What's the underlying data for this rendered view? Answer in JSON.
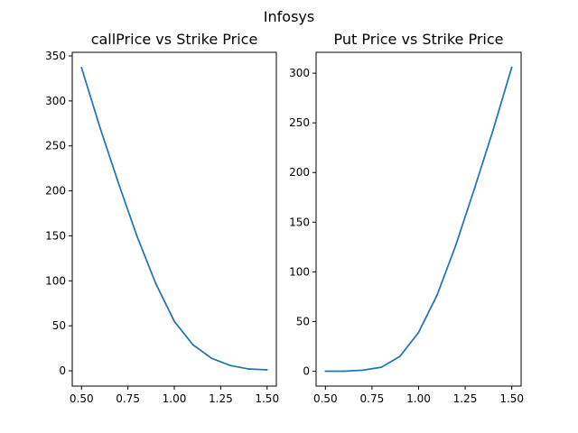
{
  "figure": {
    "suptitle": "Infosys"
  },
  "chart_data": [
    {
      "type": "line",
      "title": "callPrice vs Strike Price",
      "xlabel": "",
      "ylabel": "",
      "xlim": [
        0.45,
        1.55
      ],
      "ylim": [
        -17,
        354
      ],
      "xticks": [
        0.5,
        0.75,
        1.0,
        1.25,
        1.5
      ],
      "xtick_labels": [
        "0.50",
        "0.75",
        "1.00",
        "1.25",
        "1.50"
      ],
      "yticks": [
        0,
        50,
        100,
        150,
        200,
        250,
        300,
        350
      ],
      "ytick_labels": [
        "0",
        "50",
        "100",
        "150",
        "200",
        "250",
        "300",
        "350"
      ],
      "grid": false,
      "color": "#1f77b4",
      "series": [
        {
          "x": [
            0.5,
            0.6,
            0.7,
            0.8,
            0.9,
            1.0,
            1.1,
            1.2,
            1.3,
            1.4,
            1.5
          ],
          "values": [
            337,
            270,
            208,
            149,
            97,
            55,
            29,
            14,
            6,
            2,
            1
          ]
        }
      ]
    },
    {
      "type": "line",
      "title": "Put Price vs Strike Price",
      "xlabel": "",
      "ylabel": "",
      "xlim": [
        0.45,
        1.55
      ],
      "ylim": [
        -15,
        321
      ],
      "xticks": [
        0.5,
        0.75,
        1.0,
        1.25,
        1.5
      ],
      "xtick_labels": [
        "0.50",
        "0.75",
        "1.00",
        "1.25",
        "1.50"
      ],
      "yticks": [
        0,
        50,
        100,
        150,
        200,
        250,
        300
      ],
      "ytick_labels": [
        "0",
        "50",
        "100",
        "150",
        "200",
        "250",
        "300"
      ],
      "grid": false,
      "color": "#1f77b4",
      "series": [
        {
          "x": [
            0.5,
            0.6,
            0.7,
            0.8,
            0.9,
            1.0,
            1.1,
            1.2,
            1.3,
            1.4,
            1.5
          ],
          "values": [
            0,
            0,
            1,
            4,
            15,
            39,
            77,
            127,
            184,
            243,
            306
          ]
        }
      ]
    }
  ]
}
